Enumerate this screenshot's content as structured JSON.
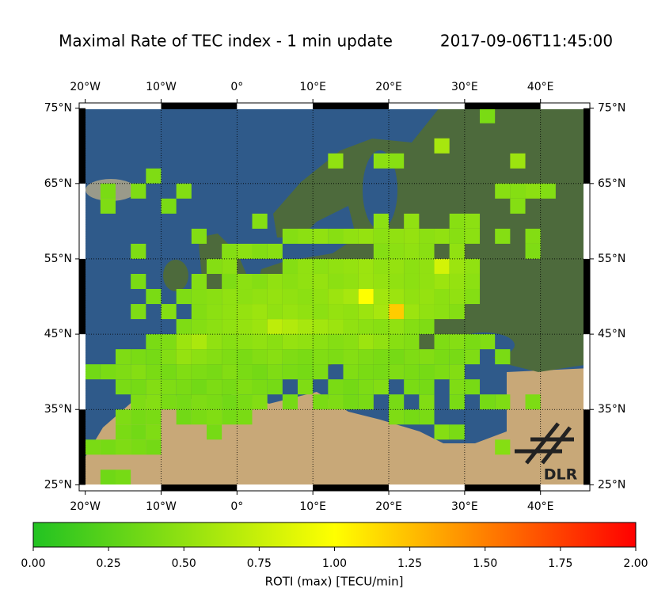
{
  "chart_data": {
    "type": "heatmap-map",
    "title": "Maximal Rate of TEC index - 1 min update",
    "timestamp": "2017-09-06T11:45:00",
    "logo": "DLR",
    "xlim": [
      -20.8,
      46.5
    ],
    "ylim": [
      24.2,
      75.7
    ],
    "xticks": [
      {
        "value": -20,
        "label": "20°W"
      },
      {
        "value": -10,
        "label": "10°W"
      },
      {
        "value": 0,
        "label": "0°"
      },
      {
        "value": 10,
        "label": "10°E"
      },
      {
        "value": 20,
        "label": "20°E"
      },
      {
        "value": 30,
        "label": "30°E"
      },
      {
        "value": 40,
        "label": "40°E"
      }
    ],
    "yticks": [
      {
        "value": 25,
        "label": "25°N"
      },
      {
        "value": 35,
        "label": "35°N"
      },
      {
        "value": 45,
        "label": "45°N"
      },
      {
        "value": 55,
        "label": "55°N"
      },
      {
        "value": 65,
        "label": "65°N"
      },
      {
        "value": 75,
        "label": "75°N"
      }
    ],
    "grid": true,
    "colormap": [
      "#22c322",
      "#ffff00",
      "#ff0000"
    ],
    "colorbar": {
      "label": "ROTI (max) [TECU/min]",
      "lim": [
        0,
        2
      ],
      "ticks": [
        {
          "value": 0,
          "label": "0.00"
        },
        {
          "value": 0.25,
          "label": "0.25"
        },
        {
          "value": 0.5,
          "label": "0.50"
        },
        {
          "value": 0.75,
          "label": "0.75"
        },
        {
          "value": 1,
          "label": "1.00"
        },
        {
          "value": 1.25,
          "label": "1.25"
        },
        {
          "value": 1.5,
          "label": "1.50"
        },
        {
          "value": 1.75,
          "label": "1.75"
        },
        {
          "value": 2,
          "label": "2.00"
        }
      ]
    },
    "rows": [
      {
        "lat": 25,
        "lons": [
          -18,
          -16
        ],
        "values": [
          0.35,
          0.38
        ]
      },
      {
        "lat": 29,
        "lons": [
          -20,
          -18,
          -16,
          -14,
          -12,
          34
        ],
        "values": [
          0.4,
          0.38,
          0.42,
          0.4,
          0.37,
          0.45
        ]
      },
      {
        "lat": 31,
        "lons": [
          -16,
          -14,
          -12,
          -4,
          26,
          28
        ],
        "values": [
          0.4,
          0.36,
          0.42,
          0.38,
          0.45,
          0.4
        ]
      },
      {
        "lat": 33,
        "lons": [
          -16,
          -14,
          -12,
          -8,
          -6,
          -4,
          -2,
          0,
          20,
          22,
          24
        ],
        "values": [
          0.42,
          0.38,
          0.4,
          0.36,
          0.4,
          0.43,
          0.38,
          0.4,
          0.42,
          0.38,
          0.4
        ]
      },
      {
        "lat": 35,
        "lons": [
          -14,
          -12,
          -10,
          -8,
          -6,
          -4,
          -2,
          0,
          2,
          6,
          10,
          12,
          14,
          16,
          20,
          24,
          28,
          32,
          34,
          38
        ],
        "values": [
          0.42,
          0.45,
          0.4,
          0.38,
          0.42,
          0.4,
          0.36,
          0.4,
          0.44,
          0.38,
          0.4,
          0.42,
          0.37,
          0.4,
          0.39,
          0.43,
          0.4,
          0.38,
          0.42,
          0.41
        ]
      },
      {
        "lat": 37,
        "lons": [
          -16,
          -14,
          -12,
          -10,
          -8,
          -6,
          -4,
          -2,
          0,
          2,
          4,
          8,
          12,
          14,
          16,
          18,
          22,
          24,
          28,
          30
        ],
        "values": [
          0.4,
          0.38,
          0.44,
          0.42,
          0.4,
          0.36,
          0.41,
          0.39,
          0.43,
          0.4,
          0.38,
          0.42,
          0.4,
          0.37,
          0.41,
          0.44,
          0.4,
          0.38,
          0.42,
          0.39
        ]
      },
      {
        "lat": 39,
        "lons": [
          -20,
          -18,
          -16,
          -14,
          -12,
          -10,
          -8,
          -6,
          -4,
          -2,
          0,
          2,
          4,
          6,
          8,
          10,
          14,
          16,
          18,
          20,
          22,
          24,
          26,
          28
        ],
        "values": [
          0.36,
          0.4,
          0.42,
          0.45,
          0.4,
          0.38,
          0.43,
          0.41,
          0.39,
          0.44,
          0.4,
          0.37,
          0.42,
          0.4,
          0.38,
          0.41,
          0.43,
          0.4,
          0.39,
          0.42,
          0.4,
          0.38,
          0.41,
          0.44
        ]
      },
      {
        "lat": 41,
        "lons": [
          -16,
          -14,
          -12,
          -10,
          -8,
          -6,
          -4,
          -2,
          0,
          2,
          4,
          6,
          8,
          10,
          12,
          14,
          16,
          18,
          20,
          22,
          24,
          26,
          28,
          30,
          34
        ],
        "values": [
          0.42,
          0.4,
          0.38,
          0.44,
          0.52,
          0.48,
          0.45,
          0.42,
          0.4,
          0.44,
          0.46,
          0.42,
          0.4,
          0.43,
          0.41,
          0.45,
          0.42,
          0.4,
          0.38,
          0.42,
          0.44,
          0.4,
          0.39,
          0.42,
          0.4
        ]
      },
      {
        "lat": 43,
        "lons": [
          -12,
          -10,
          -8,
          -6,
          -4,
          -2,
          0,
          2,
          4,
          6,
          8,
          10,
          12,
          14,
          16,
          18,
          20,
          22,
          26,
          28,
          30,
          32
        ],
        "values": [
          0.4,
          0.42,
          0.55,
          0.62,
          0.5,
          0.46,
          0.48,
          0.5,
          0.47,
          0.52,
          0.5,
          0.48,
          0.45,
          0.47,
          0.55,
          0.5,
          0.46,
          0.44,
          0.42,
          0.45,
          0.4,
          0.43
        ]
      },
      {
        "lat": 45,
        "lons": [
          -8,
          -6,
          -4,
          -2,
          0,
          2,
          4,
          6,
          8,
          10,
          12,
          14,
          16,
          18,
          20,
          22,
          24
        ],
        "values": [
          0.42,
          0.45,
          0.48,
          0.5,
          0.52,
          0.55,
          0.7,
          0.65,
          0.6,
          0.58,
          0.55,
          0.5,
          0.48,
          0.46,
          0.5,
          0.45,
          0.42
        ]
      },
      {
        "lat": 47,
        "lons": [
          -14,
          -10,
          -6,
          -4,
          -2,
          0,
          2,
          4,
          6,
          8,
          10,
          12,
          14,
          16,
          18,
          20,
          22,
          24,
          26,
          28
        ],
        "values": [
          0.42,
          0.45,
          0.44,
          0.48,
          0.5,
          0.52,
          0.55,
          0.5,
          0.53,
          0.5,
          0.48,
          0.52,
          0.5,
          0.55,
          0.6,
          1.2,
          0.55,
          0.5,
          0.48,
          0.45
        ]
      },
      {
        "lat": 49,
        "lons": [
          -12,
          -8,
          -6,
          -4,
          -2,
          0,
          2,
          4,
          6,
          8,
          10,
          12,
          14,
          16,
          18,
          20,
          22,
          24,
          26,
          28,
          30
        ],
        "values": [
          0.4,
          0.42,
          0.45,
          0.47,
          0.5,
          0.48,
          0.5,
          0.52,
          0.5,
          0.48,
          0.5,
          0.55,
          0.6,
          1.0,
          0.58,
          0.55,
          0.5,
          0.52,
          0.48,
          0.5,
          0.45
        ]
      },
      {
        "lat": 51,
        "lons": [
          -14,
          -6,
          -2,
          0,
          2,
          4,
          6,
          8,
          10,
          12,
          14,
          16,
          18,
          20,
          22,
          24,
          26,
          28,
          30
        ],
        "values": [
          0.4,
          0.45,
          0.42,
          0.48,
          0.45,
          0.5,
          0.47,
          0.5,
          0.52,
          0.48,
          0.5,
          0.55,
          0.52,
          0.5,
          0.48,
          0.5,
          0.55,
          0.52,
          0.48
        ]
      },
      {
        "lat": 53,
        "lons": [
          -4,
          -2,
          6,
          8,
          10,
          12,
          14,
          16,
          18,
          20,
          22,
          24,
          26,
          28,
          30
        ],
        "values": [
          0.45,
          0.48,
          0.45,
          0.5,
          0.48,
          0.5,
          0.52,
          0.55,
          0.5,
          0.52,
          0.48,
          0.5,
          0.8,
          0.55,
          0.5
        ]
      },
      {
        "lat": 55,
        "lons": [
          -14,
          -2,
          0,
          2,
          4,
          18,
          20,
          22,
          24,
          28,
          38
        ],
        "values": [
          0.42,
          0.45,
          0.48,
          0.44,
          0.46,
          0.45,
          0.48,
          0.5,
          0.47,
          0.5,
          0.42
        ]
      },
      {
        "lat": 57,
        "lons": [
          -6,
          6,
          8,
          10,
          12,
          14,
          16,
          18,
          20,
          22,
          24,
          26,
          28,
          30,
          34,
          38
        ],
        "values": [
          0.44,
          0.45,
          0.48,
          0.5,
          0.46,
          0.5,
          0.52,
          0.48,
          0.5,
          0.52,
          0.48,
          0.5,
          0.46,
          0.48,
          0.45,
          0.44
        ]
      },
      {
        "lat": 59,
        "lons": [
          2,
          18,
          22,
          28,
          30
        ],
        "values": [
          0.45,
          0.48,
          0.5,
          0.46,
          0.48
        ]
      },
      {
        "lat": 61,
        "lons": [
          -18,
          -10,
          36
        ],
        "values": [
          0.42,
          0.4,
          0.45
        ]
      },
      {
        "lat": 63,
        "lons": [
          -18,
          -14,
          -8,
          34,
          36,
          38,
          40
        ],
        "values": [
          0.4,
          0.42,
          0.44,
          0.46,
          0.45,
          0.48,
          0.44
        ]
      },
      {
        "lat": 65,
        "lons": [
          -12
        ],
        "values": [
          0.42
        ]
      },
      {
        "lat": 67,
        "lons": [
          12,
          18,
          20,
          36
        ],
        "values": [
          0.5,
          0.48,
          0.46,
          0.55
        ]
      },
      {
        "lat": 69,
        "lons": [
          26
        ],
        "values": [
          0.6
        ]
      },
      {
        "lat": 73,
        "lons": [
          32
        ],
        "values": [
          0.4
        ]
      }
    ]
  }
}
